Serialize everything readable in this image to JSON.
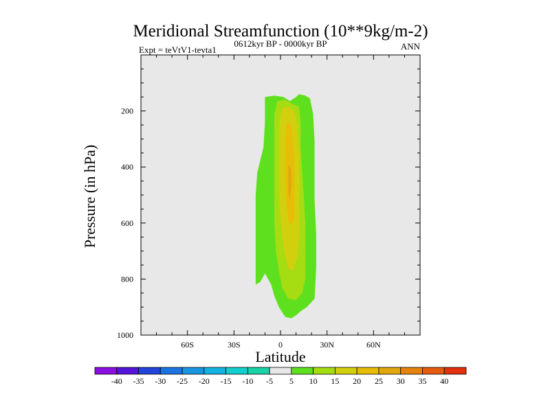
{
  "chart_data": {
    "type": "heatmap",
    "title": "Meridional Streamfunction (10**9kg/m-2)",
    "left_label": "Expt = teVtV1-tevta1",
    "center_label": "0612kyr BP - 0000kyr BP",
    "right_label": "ANN",
    "xlabel": "Latitude",
    "ylabel": "Pressure (in hPa)",
    "xlim": [
      -90,
      90
    ],
    "ylim": [
      1000,
      0
    ],
    "x_ticks": [
      {
        "value": -60,
        "label": "60S"
      },
      {
        "value": -30,
        "label": "30S"
      },
      {
        "value": 0,
        "label": "0"
      },
      {
        "value": 30,
        "label": "30N"
      },
      {
        "value": 60,
        "label": "60N"
      }
    ],
    "y_ticks": [
      {
        "value": 200,
        "label": "200"
      },
      {
        "value": 400,
        "label": "400"
      },
      {
        "value": 600,
        "label": "600"
      },
      {
        "value": 800,
        "label": "800"
      },
      {
        "value": 1000,
        "label": "1000"
      }
    ],
    "background_color": "#e8e8e8",
    "contours": [
      {
        "level": 5,
        "color": "#5ee01e",
        "points": [
          [
            -10,
            150
          ],
          [
            -4,
            145
          ],
          [
            2,
            150
          ],
          [
            6,
            165
          ],
          [
            10,
            150
          ],
          [
            12,
            140
          ],
          [
            16,
            145
          ],
          [
            19,
            155
          ],
          [
            21,
            210
          ],
          [
            22,
            310
          ],
          [
            22,
            420
          ],
          [
            22,
            520
          ],
          [
            23,
            640
          ],
          [
            23,
            760
          ],
          [
            22,
            870
          ],
          [
            17,
            900
          ],
          [
            13,
            915
          ],
          [
            10,
            930
          ],
          [
            7,
            940
          ],
          [
            3,
            935
          ],
          [
            -1,
            900
          ],
          [
            -4,
            860
          ],
          [
            -6,
            820
          ],
          [
            -10,
            780
          ],
          [
            -13,
            810
          ],
          [
            -16,
            820
          ],
          [
            -16,
            700
          ],
          [
            -16,
            600
          ],
          [
            -16,
            500
          ],
          [
            -15,
            420
          ],
          [
            -11,
            330
          ],
          [
            -10,
            240
          ]
        ]
      },
      {
        "level": 10,
        "color": "#a6dc12",
        "points": [
          [
            -2,
            165
          ],
          [
            3,
            160
          ],
          [
            8,
            175
          ],
          [
            12,
            185
          ],
          [
            13,
            240
          ],
          [
            13,
            330
          ],
          [
            14,
            420
          ],
          [
            15,
            500
          ],
          [
            16,
            600
          ],
          [
            16,
            700
          ],
          [
            16,
            800
          ],
          [
            14,
            850
          ],
          [
            10,
            875
          ],
          [
            5,
            870
          ],
          [
            1,
            830
          ],
          [
            -1,
            770
          ],
          [
            -3,
            700
          ],
          [
            -4,
            600
          ],
          [
            -4,
            500
          ],
          [
            -4,
            400
          ],
          [
            -4,
            300
          ],
          [
            -4,
            210
          ]
        ]
      },
      {
        "level": 15,
        "color": "#d2cf0e",
        "points": [
          [
            1,
            190
          ],
          [
            5,
            185
          ],
          [
            9,
            200
          ],
          [
            11,
            250
          ],
          [
            12,
            340
          ],
          [
            12,
            420
          ],
          [
            12,
            500
          ],
          [
            12,
            570
          ],
          [
            12,
            650
          ],
          [
            11,
            720
          ],
          [
            8,
            770
          ],
          [
            5,
            760
          ],
          [
            3,
            720
          ],
          [
            1,
            650
          ],
          [
            0,
            580
          ],
          [
            -1,
            500
          ],
          [
            -1,
            420
          ],
          [
            -1,
            330
          ],
          [
            -1,
            260
          ],
          [
            0,
            215
          ]
        ]
      },
      {
        "level": 20,
        "color": "#e8bd08",
        "points": [
          [
            4,
            240
          ],
          [
            7,
            250
          ],
          [
            8,
            300
          ],
          [
            9,
            380
          ],
          [
            9,
            450
          ],
          [
            9,
            520
          ],
          [
            9,
            580
          ],
          [
            7,
            610
          ],
          [
            5,
            590
          ],
          [
            4,
            530
          ],
          [
            3,
            450
          ],
          [
            3,
            370
          ],
          [
            3,
            300
          ]
        ]
      },
      {
        "level": 25,
        "color": "#e0a70e",
        "points": [
          [
            5,
            390
          ],
          [
            7,
            410
          ],
          [
            7,
            470
          ],
          [
            6,
            520
          ],
          [
            5,
            490
          ],
          [
            5,
            430
          ]
        ]
      }
    ],
    "colorbar": {
      "labels": [
        "-40",
        "-35",
        "-30",
        "-25",
        "-20",
        "-15",
        "-10",
        "-5",
        "5",
        "10",
        "15",
        "20",
        "25",
        "30",
        "35",
        "40"
      ],
      "colors": [
        "#8a0ee0",
        "#5414d8",
        "#2244d8",
        "#1c74e0",
        "#1896e0",
        "#14b2e0",
        "#12cece",
        "#1ad2a8",
        "#e6e6e6",
        "#5ee01e",
        "#a6dc12",
        "#d2cf0e",
        "#e8bd08",
        "#e0a70e",
        "#e2840e",
        "#e45a0e",
        "#e0300e"
      ]
    }
  }
}
